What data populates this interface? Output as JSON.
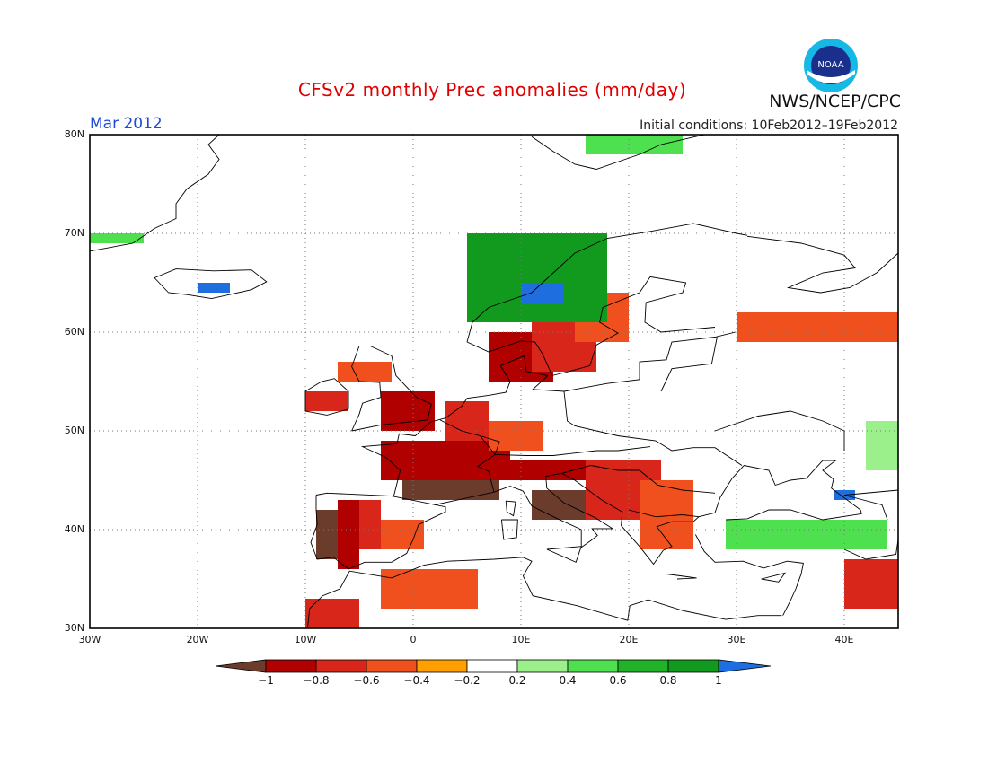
{
  "title": "CFSv2 monthly Prec anomalies (mm/day)",
  "agency": "NWS/NCEP/CPC",
  "logo_text": "NOAA",
  "period": "Mar 2012",
  "initial_conditions": "Initial conditions: 10Feb2012–19Feb2012",
  "lat_labels": [
    "80N",
    "70N",
    "60N",
    "50N",
    "40N",
    "30N"
  ],
  "lon_labels": [
    "30W",
    "20W",
    "10W",
    "0",
    "10E",
    "20E",
    "30E",
    "40E"
  ],
  "colorbar": {
    "ticks": [
      "−1",
      "−0.8",
      "−0.6",
      "−0.4",
      "−0.2",
      "0.2",
      "0.4",
      "0.6",
      "0.8",
      "1"
    ],
    "colors": [
      "#6b3c2c",
      "#b00000",
      "#d8261a",
      "#f0501e",
      "#ffa000",
      "#ffffff",
      "#9cf08c",
      "#4fe04f",
      "#22b22a",
      "#129a1e",
      "#1f6ee0"
    ]
  },
  "anomaly_regions": [
    {
      "name": "spain-west",
      "level": "lt-1",
      "lon": [
        -9,
        -7
      ],
      "lat": [
        37,
        42
      ]
    },
    {
      "name": "spain-west-fringe",
      "level": "-0.8",
      "lon": [
        -7,
        -5
      ],
      "lat": [
        36,
        43
      ]
    },
    {
      "name": "spain-central",
      "level": "-0.6",
      "lon": [
        -5,
        -3
      ],
      "lat": [
        38,
        43
      ]
    },
    {
      "name": "spain-east",
      "level": "-0.4",
      "lon": [
        -3,
        1
      ],
      "lat": [
        38,
        41
      ]
    },
    {
      "name": "france-south",
      "level": "lt-1",
      "lon": [
        -1,
        8
      ],
      "lat": [
        43,
        45
      ]
    },
    {
      "name": "france-central",
      "level": "-0.8",
      "lon": [
        -3,
        9
      ],
      "lat": [
        45,
        49
      ]
    },
    {
      "name": "benelux",
      "level": "-0.6",
      "lon": [
        3,
        7
      ],
      "lat": [
        49,
        53
      ]
    },
    {
      "name": "germany-west",
      "level": "-0.4",
      "lon": [
        7,
        12
      ],
      "lat": [
        48,
        51
      ]
    },
    {
      "name": "alps",
      "level": "-0.8",
      "lon": [
        9,
        16
      ],
      "lat": [
        45,
        47
      ]
    },
    {
      "name": "italy",
      "level": "lt-1",
      "lon": [
        11,
        18
      ],
      "lat": [
        41,
        44
      ]
    },
    {
      "name": "balkans",
      "level": "-0.6",
      "lon": [
        16,
        23
      ],
      "lat": [
        41,
        47
      ]
    },
    {
      "name": "balkans-east",
      "level": "-0.4",
      "lon": [
        21,
        26
      ],
      "lat": [
        38,
        45
      ]
    },
    {
      "name": "uk",
      "level": "-0.8",
      "lon": [
        -3,
        2
      ],
      "lat": [
        50,
        54
      ]
    },
    {
      "name": "ireland",
      "level": "-0.6",
      "lon": [
        -10,
        -6
      ],
      "lat": [
        52,
        54
      ]
    },
    {
      "name": "scotland",
      "level": "-0.4",
      "lon": [
        -7,
        -2
      ],
      "lat": [
        55,
        57
      ]
    },
    {
      "name": "denmark-sweden",
      "level": "-0.8",
      "lon": [
        7,
        13
      ],
      "lat": [
        55,
        60
      ]
    },
    {
      "name": "sweden-south",
      "level": "-0.6",
      "lon": [
        11,
        17
      ],
      "lat": [
        56,
        61
      ]
    },
    {
      "name": "finland",
      "level": "-0.4",
      "lon": [
        15,
        20
      ],
      "lat": [
        59,
        64
      ]
    },
    {
      "name": "russia-north",
      "level": "-0.4",
      "lon": [
        30,
        45
      ],
      "lat": [
        59,
        62
      ]
    },
    {
      "name": "north-africa",
      "level": "-0.4",
      "lon": [
        -3,
        6
      ],
      "lat": [
        32,
        36
      ]
    },
    {
      "name": "morocco",
      "level": "-0.6",
      "lon": [
        -10,
        -5
      ],
      "lat": [
        30,
        33
      ]
    },
    {
      "name": "middle-east",
      "level": "-0.6",
      "lon": [
        40,
        45
      ],
      "lat": [
        32,
        37
      ]
    },
    {
      "name": "norway-coast",
      "level": "0.8",
      "lon": [
        5,
        18
      ],
      "lat": [
        61,
        70
      ]
    },
    {
      "name": "norway-blue",
      "level": "gt-1",
      "lon": [
        10,
        14
      ],
      "lat": [
        63,
        65
      ]
    },
    {
      "name": "iceland",
      "level": "gt-1",
      "lon": [
        -20,
        -17
      ],
      "lat": [
        64,
        65
      ]
    },
    {
      "name": "greenland-east",
      "level": "0.4",
      "lon": [
        -30,
        -25
      ],
      "lat": [
        69,
        70
      ]
    },
    {
      "name": "svalbard",
      "level": "0.4",
      "lon": [
        16,
        25
      ],
      "lat": [
        78,
        80
      ]
    },
    {
      "name": "turkey-north",
      "level": "0.4",
      "lon": [
        29,
        44
      ],
      "lat": [
        38,
        41
      ]
    },
    {
      "name": "black-sea-blue",
      "level": "gt-1",
      "lon": [
        39,
        41
      ],
      "lat": [
        43,
        44
      ]
    },
    {
      "name": "caucasus",
      "level": "0.2",
      "lon": [
        42,
        45
      ],
      "lat": [
        46,
        51
      ]
    }
  ]
}
